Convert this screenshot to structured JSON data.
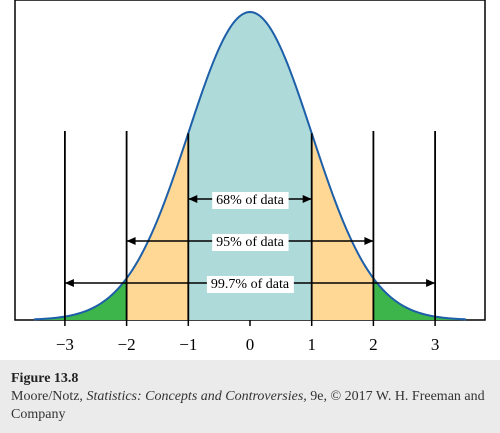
{
  "chart_data": {
    "type": "area",
    "title": "",
    "xlabel": "",
    "ylabel": "",
    "xlim": [
      -3.5,
      3.5
    ],
    "x_ticks": [
      -3,
      -2,
      -1,
      0,
      1,
      2,
      3
    ],
    "x_tick_labels": [
      "−3",
      "−2",
      "−1",
      "0",
      "1",
      "2",
      "3"
    ],
    "curve": "standard normal density",
    "regions": [
      {
        "from": -1,
        "to": 1,
        "color": "#aedbd9"
      },
      {
        "from": -2,
        "to": -1,
        "color": "#ffd896"
      },
      {
        "from": 1,
        "to": 2,
        "color": "#ffd896"
      },
      {
        "from": -3.5,
        "to": -2,
        "color": "#3db54a"
      },
      {
        "from": 2,
        "to": 3.5,
        "color": "#3db54a"
      }
    ],
    "curve_color": "#1d5fa8",
    "intervals": [
      {
        "from": -1,
        "to": 1,
        "label": "68% of data",
        "percent": 68
      },
      {
        "from": -2,
        "to": 2,
        "label": "95% of data",
        "percent": 95
      },
      {
        "from": -3,
        "to": 3,
        "label": "99.7% of data",
        "percent": 99.7
      }
    ],
    "grid": false,
    "legend": "none"
  },
  "caption": {
    "figure_label": "Figure 13.8",
    "authors": "Moore/Notz, ",
    "book_title": "Statistics: Concepts and Controversies,",
    "rest": " 9e, © 2017 W. H. Freeman and Company"
  }
}
